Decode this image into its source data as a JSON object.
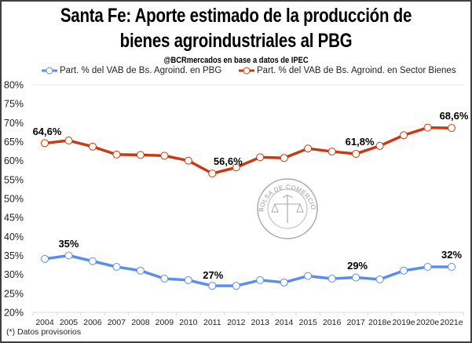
{
  "chart_data": {
    "type": "line",
    "title": "Santa Fe: Aporte estimado de la producción de bienes agroindustriales al PBG",
    "title_lines": [
      "Santa Fe: Aporte estimado de la producción de",
      "bienes agroindustriales al PBG"
    ],
    "subtitle": "@BCRmercados en base a datos de IPEC",
    "xlabel": "",
    "ylabel": "",
    "x": [
      "2004",
      "2005",
      "2006",
      "2007",
      "2008",
      "2009",
      "2010",
      "2011",
      "2012",
      "2013",
      "2014",
      "2015",
      "2016",
      "2017",
      "2018e",
      "2019e",
      "2020e",
      "2021e"
    ],
    "ylim": [
      20,
      80
    ],
    "yticks": [
      20,
      25,
      30,
      35,
      40,
      45,
      50,
      55,
      60,
      65,
      70,
      75,
      80
    ],
    "ytick_labels": [
      "20%",
      "25%",
      "30%",
      "35%",
      "40%",
      "45%",
      "50%",
      "55%",
      "60%",
      "65%",
      "70%",
      "75%",
      "80%"
    ],
    "grid": false,
    "legend_position": "top",
    "series": [
      {
        "name": "Part. % del VAB de Bs. Agroind. en PBG",
        "color": "#5B8DEF",
        "values": [
          34.1,
          35.0,
          33.5,
          32.0,
          31.0,
          28.9,
          28.5,
          27.0,
          27.0,
          28.5,
          27.9,
          29.6,
          28.9,
          29.2,
          28.7,
          31.0,
          32.0,
          32.0
        ],
        "labels": [
          {
            "index": 1,
            "text": "35%"
          },
          {
            "index": 7,
            "text": "27%"
          },
          {
            "index": 13,
            "text": "29%"
          },
          {
            "index": 17,
            "text": "32%"
          }
        ]
      },
      {
        "name": "Part. % del VAB de Bs. Agroind. en Sector Bienes",
        "color": "#C93A10",
        "values": [
          64.6,
          65.3,
          63.7,
          61.6,
          61.5,
          61.3,
          60.0,
          56.6,
          58.2,
          60.9,
          60.7,
          63.2,
          62.4,
          61.8,
          63.9,
          66.7,
          68.7,
          68.6
        ],
        "labels": [
          {
            "index": 0,
            "text": "64,6%"
          },
          {
            "index": 7,
            "text": "56,6%"
          },
          {
            "index": 13,
            "text": "61,8%"
          },
          {
            "index": 17,
            "text": "68,6%"
          }
        ]
      }
    ],
    "footnote": "(*) Datos provisorios",
    "watermark": {
      "outer_text": "BOLSA DE COMERCIO DE ROSARIO"
    }
  }
}
